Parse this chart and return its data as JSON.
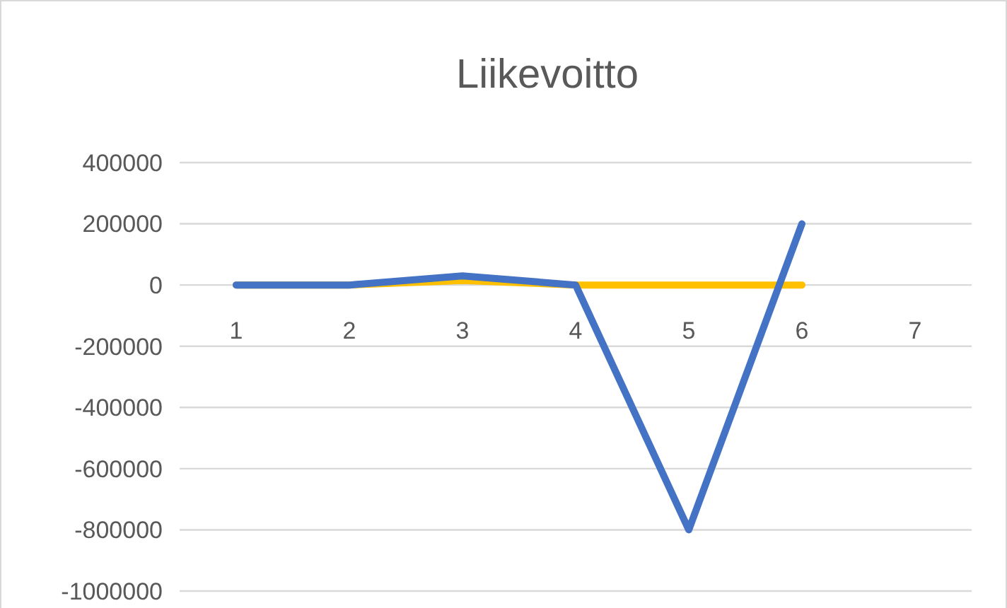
{
  "chart_data": {
    "type": "line",
    "title": "Liikevoitto",
    "categories": [
      "1",
      "2",
      "3",
      "4",
      "5",
      "6",
      "7"
    ],
    "series": [
      {
        "color": "#ffc000",
        "values": [
          0,
          0,
          15000,
          0,
          0,
          0,
          null
        ]
      },
      {
        "color": "#4472c4",
        "values": [
          0,
          0,
          30000,
          0,
          -800000,
          200000,
          null
        ]
      }
    ],
    "ylim": [
      -1000000,
      400000
    ],
    "yticks": [
      -1000000,
      -800000,
      -600000,
      -400000,
      -200000,
      0,
      200000,
      400000
    ],
    "grid": "y",
    "marker": "none",
    "line_style": "solid"
  }
}
